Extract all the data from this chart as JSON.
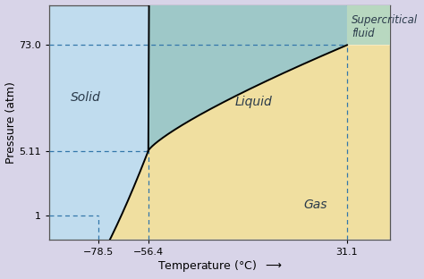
{
  "title": "",
  "xlabel": "Temperature (°C)",
  "ylabel": "Pressure (atm)",
  "xlim": [
    -100,
    50
  ],
  "ylim_log": [
    0.55,
    200
  ],
  "triple_T": -56.4,
  "triple_P": 5.11,
  "crit_T": 31.1,
  "crit_P": 73.0,
  "t_785": -78.5,
  "t_564": -56.4,
  "t_311": 31.1,
  "p_1": 1.0,
  "p_511": 5.11,
  "p_730": 73.0,
  "color_solid": "#c0dcee",
  "color_liquid": "#9ec8c8",
  "color_gas": "#f0dfa0",
  "color_supercritical": "#b8d8c0",
  "color_outer_bg": "#d8d4e8",
  "color_plot_bg": "#ffffff",
  "dash_color": "#3377aa",
  "tick_label_fontsize": 8,
  "label_fontsize": 9,
  "region_fontsize": 10
}
